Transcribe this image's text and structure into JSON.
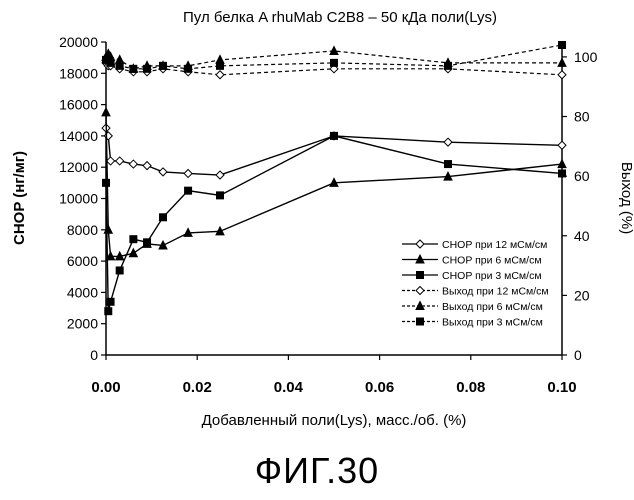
{
  "figure_caption": "ФИГ.30",
  "chart_data": {
    "type": "line",
    "title": "Пул белка A rhuMab C2B8 – 50 кДа поли(Lys)",
    "xlabel": "Добавленный поли(Lys), масс./об. (%)",
    "ylabel": "CHOP (нг/мг)",
    "y2label": "Выход (%)",
    "xlim": [
      0,
      0.1
    ],
    "ylim": [
      0,
      20000
    ],
    "y2lim": [
      0,
      105
    ],
    "x_ticks": [
      "0.00",
      "0.02",
      "0.04",
      "0.06",
      "0.08",
      "0.10"
    ],
    "y_ticks": [
      "0",
      "2000",
      "4000",
      "6000",
      "8000",
      "10000",
      "12000",
      "14000",
      "16000",
      "18000",
      "20000"
    ],
    "y2_ticks": [
      "0",
      "20",
      "40",
      "60",
      "80",
      "100"
    ],
    "legend_position": "bottom-right",
    "series": [
      {
        "name": "CHOP при 12 мСм/см",
        "axis": "left",
        "marker": "diamond",
        "dash": "solid",
        "x": [
          0,
          0.0005,
          0.001,
          0.003,
          0.006,
          0.009,
          0.0125,
          0.018,
          0.025,
          0.05,
          0.075,
          0.1
        ],
        "y": [
          14500,
          14000,
          12400,
          12400,
          12200,
          12100,
          11700,
          11600,
          11500,
          14000,
          13600,
          13400
        ]
      },
      {
        "name": "CHOP при 6 мСм/см",
        "axis": "left",
        "marker": "triangle",
        "dash": "solid",
        "x": [
          0,
          0.0005,
          0.001,
          0.003,
          0.006,
          0.009,
          0.0125,
          0.018,
          0.025,
          0.05,
          0.075,
          0.1
        ],
        "y": [
          15500,
          8000,
          6300,
          6300,
          6500,
          7100,
          7000,
          7800,
          7900,
          11000,
          11400,
          12200
        ]
      },
      {
        "name": "CHOP при 3 мСм/см",
        "axis": "left",
        "marker": "square",
        "dash": "solid",
        "x": [
          0,
          0.0005,
          0.001,
          0.003,
          0.006,
          0.009,
          0.0125,
          0.018,
          0.025,
          0.05,
          0.075,
          0.1
        ],
        "y": [
          11000,
          2800,
          3400,
          5400,
          7400,
          7200,
          8800,
          10500,
          10200,
          14000,
          12200,
          11600
        ]
      },
      {
        "name": "Выход при 12 мСм/см",
        "axis": "right",
        "marker": "diamond",
        "dash": "dashed",
        "x": [
          0,
          0.0005,
          0.001,
          0.003,
          0.006,
          0.009,
          0.0125,
          0.018,
          0.025,
          0.05,
          0.075,
          0.1
        ],
        "y": [
          98,
          97,
          97,
          96,
          95,
          95,
          96,
          95,
          94,
          96,
          96,
          94
        ]
      },
      {
        "name": "Выход при 6 мСм/см",
        "axis": "right",
        "marker": "triangle",
        "dash": "dashed",
        "x": [
          0,
          0.0005,
          0.001,
          0.003,
          0.006,
          0.009,
          0.0125,
          0.018,
          0.025,
          0.05,
          0.075,
          0.1
        ],
        "y": [
          100,
          101,
          100,
          99,
          96,
          97,
          97,
          97,
          99,
          102,
          98,
          98
        ]
      },
      {
        "name": "Выход при 3 мСм/см",
        "axis": "right",
        "marker": "square",
        "dash": "dashed",
        "x": [
          0,
          0.0005,
          0.001,
          0.003,
          0.006,
          0.009,
          0.0125,
          0.018,
          0.025,
          0.05,
          0.075,
          0.1
        ],
        "y": [
          99,
          99,
          98,
          97,
          96,
          96,
          97,
          96,
          97,
          98,
          97,
          104
        ]
      }
    ]
  }
}
